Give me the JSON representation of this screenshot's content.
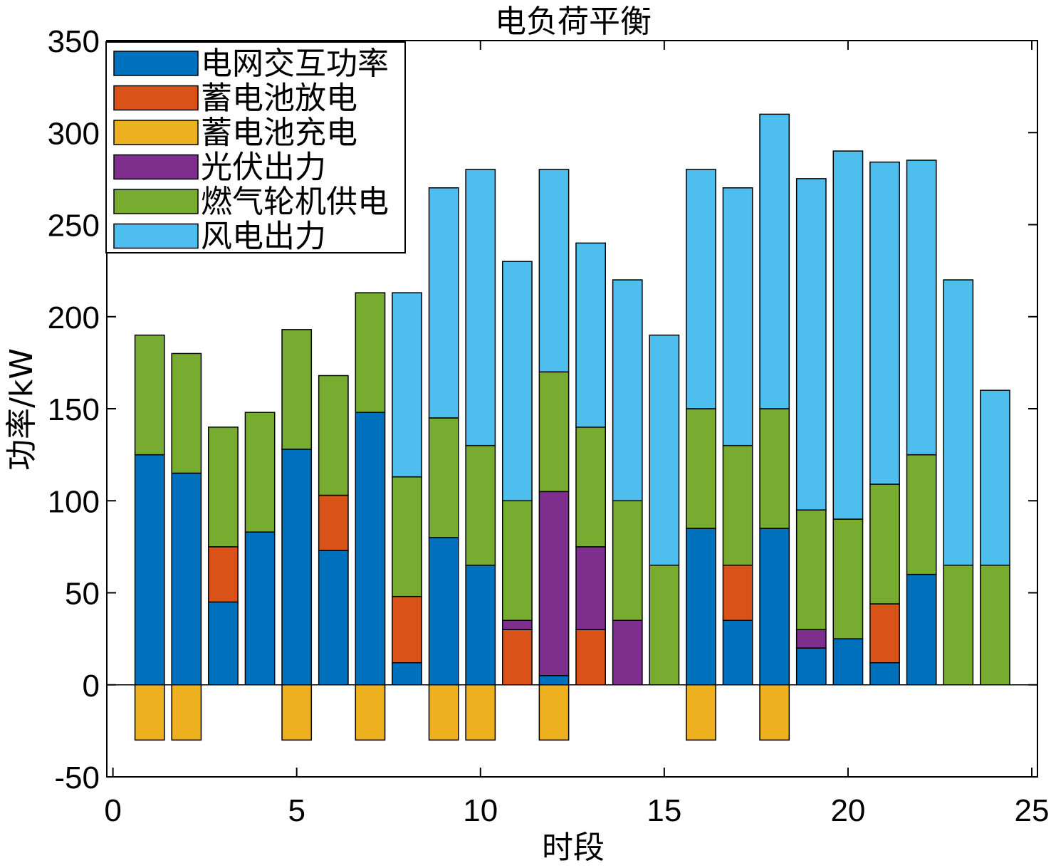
{
  "chart_data": {
    "type": "bar",
    "stacked": true,
    "title": "电负荷平衡",
    "xlabel": "时段",
    "ylabel": "功率/kW",
    "xlim": [
      0,
      25
    ],
    "ylim": [
      -50,
      350
    ],
    "xticks": [
      "0",
      "5",
      "10",
      "15",
      "20",
      "25"
    ],
    "yticks": [
      "-50",
      "0",
      "50",
      "100",
      "150",
      "200",
      "250",
      "300",
      "350"
    ],
    "legend_position": "top-left",
    "categories": [
      1,
      2,
      3,
      4,
      5,
      6,
      7,
      8,
      9,
      10,
      11,
      12,
      13,
      14,
      15,
      16,
      17,
      18,
      19,
      20,
      21,
      22,
      23,
      24
    ],
    "series": [
      {
        "name": "电网交互功率",
        "color": "#0072BD",
        "values": [
          125,
          115,
          45,
          83,
          128,
          73,
          148,
          12,
          80,
          65,
          0,
          5,
          0,
          0,
          0,
          85,
          35,
          85,
          20,
          25,
          12,
          60,
          0,
          0
        ]
      },
      {
        "name": "蓄电池放电",
        "color": "#D95319",
        "values": [
          0,
          0,
          30,
          0,
          0,
          30,
          0,
          36,
          0,
          0,
          30,
          0,
          30,
          0,
          0,
          0,
          30,
          0,
          0,
          0,
          32,
          0,
          0,
          0
        ]
      },
      {
        "name": "蓄电池充电",
        "color": "#EDB120",
        "values": [
          -30,
          -30,
          0,
          0,
          -30,
          0,
          -30,
          0,
          -30,
          -30,
          0,
          -30,
          0,
          0,
          0,
          -30,
          0,
          -30,
          0,
          0,
          0,
          0,
          0,
          0
        ]
      },
      {
        "name": "光伏出力",
        "color": "#7E2F8E",
        "values": [
          0,
          0,
          0,
          0,
          0,
          0,
          0,
          0,
          0,
          0,
          5,
          100,
          45,
          35,
          0,
          0,
          0,
          0,
          10,
          0,
          0,
          0,
          0,
          0
        ]
      },
      {
        "name": "燃气轮机供电",
        "color": "#77AC30",
        "values": [
          65,
          65,
          65,
          65,
          65,
          65,
          65,
          65,
          65,
          65,
          65,
          65,
          65,
          65,
          65,
          65,
          65,
          65,
          65,
          65,
          65,
          65,
          65,
          65
        ]
      },
      {
        "name": "风电出力",
        "color": "#4DBEEE",
        "values": [
          0,
          0,
          0,
          0,
          0,
          0,
          0,
          100,
          125,
          150,
          130,
          110,
          100,
          120,
          125,
          130,
          140,
          160,
          180,
          200,
          175,
          160,
          155,
          95
        ]
      }
    ]
  }
}
